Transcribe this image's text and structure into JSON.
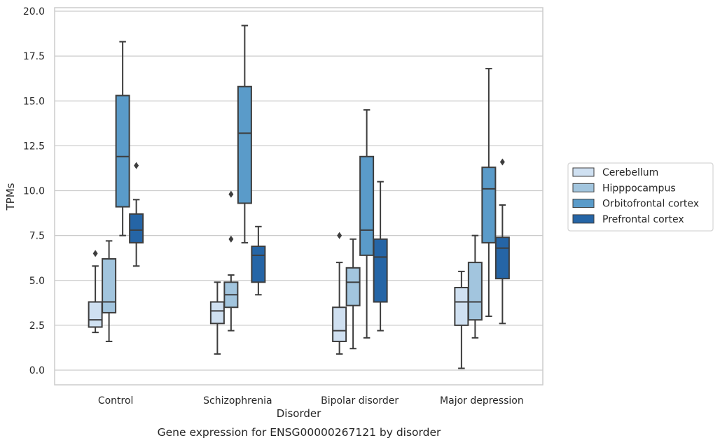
{
  "chart_data": {
    "type": "box",
    "xlabel": "Disorder",
    "ylabel": "TPMs",
    "caption": "Gene expression for ENSG00000267121 by disorder",
    "categories": [
      "Control",
      "Schizophrenia",
      "Bipolar disorder",
      "Major depression"
    ],
    "ylim": [
      -0.8,
      20.2
    ],
    "yticks": [
      "0.0",
      "2.5",
      "5.0",
      "7.5",
      "10.0",
      "12.5",
      "15.0",
      "17.5",
      "20.0"
    ],
    "grid": "horizontal",
    "legend_position": "right",
    "series": [
      {
        "name": "Cerebellum",
        "color": "#cfe0f1",
        "boxes": [
          {
            "min": 2.1,
            "q1": 2.4,
            "median": 2.8,
            "q3": 3.8,
            "max": 5.8,
            "outliers": [
              6.5
            ]
          },
          {
            "min": 0.9,
            "q1": 2.6,
            "median": 3.3,
            "q3": 3.8,
            "max": 4.9,
            "outliers": []
          },
          {
            "min": 0.9,
            "q1": 1.6,
            "median": 2.2,
            "q3": 3.5,
            "max": 6.0,
            "outliers": [
              7.5
            ]
          },
          {
            "min": 0.1,
            "q1": 2.5,
            "median": 3.8,
            "q3": 4.6,
            "max": 5.5,
            "outliers": []
          }
        ]
      },
      {
        "name": "Hipppocampus",
        "color": "#a2c5de",
        "boxes": [
          {
            "min": 1.6,
            "q1": 3.2,
            "median": 3.8,
            "q3": 6.2,
            "max": 7.2,
            "outliers": []
          },
          {
            "min": 2.2,
            "q1": 3.5,
            "median": 4.2,
            "q3": 4.9,
            "max": 5.3,
            "outliers": [
              7.3,
              9.8
            ]
          },
          {
            "min": 1.2,
            "q1": 3.6,
            "median": 4.9,
            "q3": 5.7,
            "max": 7.3,
            "outliers": []
          },
          {
            "min": 1.8,
            "q1": 2.8,
            "median": 3.8,
            "q3": 6.0,
            "max": 7.5,
            "outliers": []
          }
        ]
      },
      {
        "name": "Orbitofrontal cortex",
        "color": "#5a9bc9",
        "boxes": [
          {
            "min": 7.5,
            "q1": 9.1,
            "median": 11.9,
            "q3": 15.3,
            "max": 18.3,
            "outliers": []
          },
          {
            "min": 7.1,
            "q1": 9.3,
            "median": 13.2,
            "q3": 15.8,
            "max": 19.2,
            "outliers": []
          },
          {
            "min": 1.8,
            "q1": 6.4,
            "median": 7.8,
            "q3": 11.9,
            "max": 14.5,
            "outliers": []
          },
          {
            "min": 3.0,
            "q1": 7.1,
            "median": 10.1,
            "q3": 11.3,
            "max": 16.8,
            "outliers": []
          }
        ]
      },
      {
        "name": "Prefrontal cortex",
        "color": "#2565a6",
        "boxes": [
          {
            "min": 5.8,
            "q1": 7.1,
            "median": 7.8,
            "q3": 8.7,
            "max": 9.5,
            "outliers": [
              11.4
            ]
          },
          {
            "min": 4.2,
            "q1": 4.9,
            "median": 6.4,
            "q3": 6.9,
            "max": 8.0,
            "outliers": []
          },
          {
            "min": 2.2,
            "q1": 3.8,
            "median": 6.3,
            "q3": 7.3,
            "max": 10.5,
            "outliers": []
          },
          {
            "min": 2.6,
            "q1": 5.1,
            "median": 6.8,
            "q3": 7.4,
            "max": 9.2,
            "outliers": [
              11.6
            ]
          }
        ]
      }
    ]
  }
}
